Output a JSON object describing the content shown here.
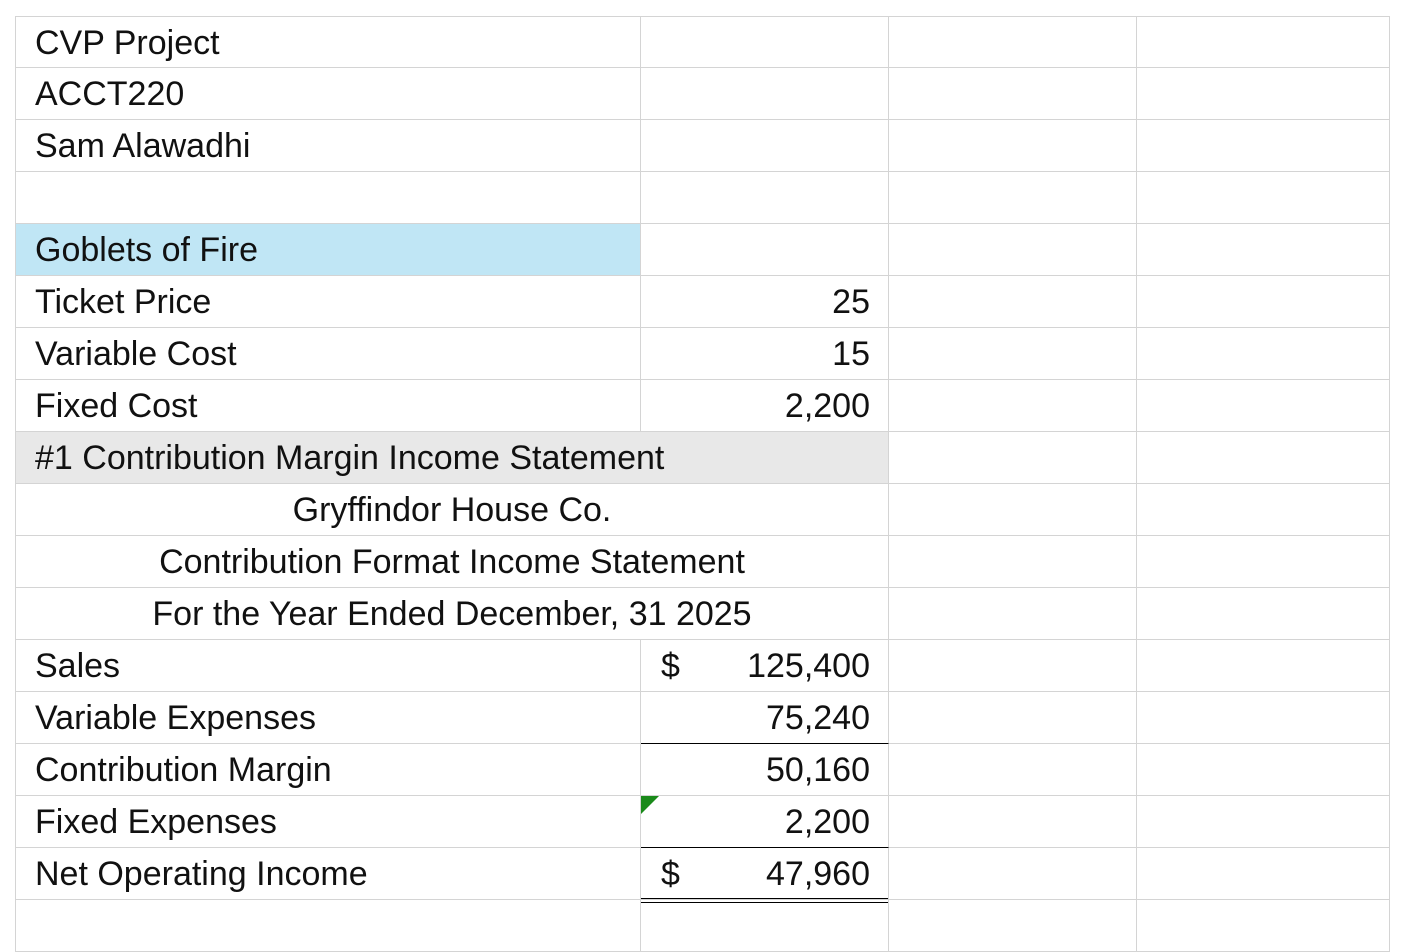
{
  "header": {
    "project": "CVP Project",
    "course": "ACCT220",
    "author": "Sam Alawadhi"
  },
  "inputs": {
    "section_title": "Goblets of Fire",
    "ticket_price_label": "Ticket Price",
    "ticket_price": "25",
    "variable_cost_label": "Variable Cost",
    "variable_cost": "15",
    "fixed_cost_label": "Fixed Cost",
    "fixed_cost": "2,200"
  },
  "statement": {
    "section_title": "#1 Contribution Margin Income Statement",
    "company": "Gryffindor House Co.",
    "title": "Contribution Format Income Statement",
    "period": "For the Year Ended December, 31 2025",
    "currency": "$",
    "rows": [
      {
        "label": "Sales",
        "value": "125,400"
      },
      {
        "label": "Variable Expenses",
        "value": "75,240"
      },
      {
        "label": "Contribution Margin",
        "value": "50,160"
      },
      {
        "label": "Fixed Expenses",
        "value": "2,200"
      },
      {
        "label": "Net Operating Income",
        "value": "47,960"
      }
    ]
  },
  "colors": {
    "highlight_blue": "#c0e6f5",
    "highlight_gray": "#e8e8e8",
    "grid": "#d4d4d4",
    "error_marker": "#1a8a1a"
  }
}
